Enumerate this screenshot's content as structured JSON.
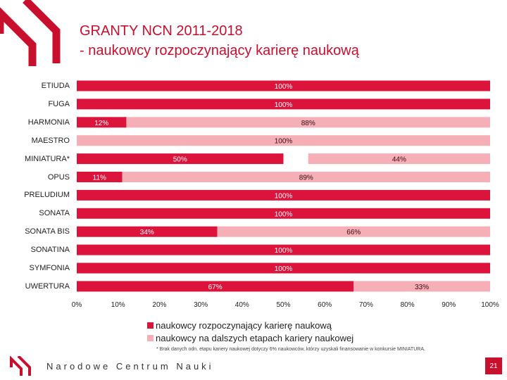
{
  "header": {
    "title_line1": "GRANTY NCN 2011-2018",
    "title_line2": "- naukowcy rozpoczynający karierę naukową"
  },
  "chart_data": {
    "type": "bar",
    "orientation": "horizontal",
    "stacked": true,
    "categories": [
      "ETIUDA",
      "FUGA",
      "HARMONIA",
      "MAESTRO",
      "MINIATURA*",
      "OPUS",
      "PRELUDIUM",
      "SONATA",
      "SONATA BIS",
      "SONATINA",
      "SYMFONIA",
      "UWERTURA"
    ],
    "series": [
      {
        "name": "naukowcy rozpoczynający karierę naukową",
        "color": "#dc143c",
        "values": [
          100,
          100,
          12,
          0,
          50,
          11,
          100,
          100,
          34,
          100,
          100,
          67
        ],
        "labels": [
          "100%",
          "100%",
          "12%",
          "",
          "50%",
          "11%",
          "100%",
          "100%",
          "34%",
          "100%",
          "100%",
          "67%"
        ]
      },
      {
        "name": "naukowcy na dalszych etapach kariery naukowej",
        "color": "#f6aeb7",
        "values": [
          0,
          0,
          88,
          100,
          44,
          89,
          0,
          0,
          66,
          0,
          0,
          33
        ],
        "labels": [
          "",
          "",
          "88%",
          "100%",
          "44%",
          "89%",
          "",
          "",
          "66%",
          "",
          "",
          "33%"
        ]
      }
    ],
    "xlim": [
      0,
      100
    ],
    "xticks": [
      "0%",
      "10%",
      "20%",
      "30%",
      "40%",
      "50%",
      "60%",
      "70%",
      "80%",
      "90%",
      "100%"
    ],
    "legend_position": "bottom",
    "grid": false
  },
  "footnote": "* Brak danych odn. etapu kariery naukowej dotyczy 6% naukowców, którzy uzyskali finansowanie w konkursie MINIATURA.",
  "footer": {
    "org_name": "Narodowe Centrum Nauki",
    "page_number": "21"
  },
  "colors": {
    "accent": "#c8102e"
  }
}
